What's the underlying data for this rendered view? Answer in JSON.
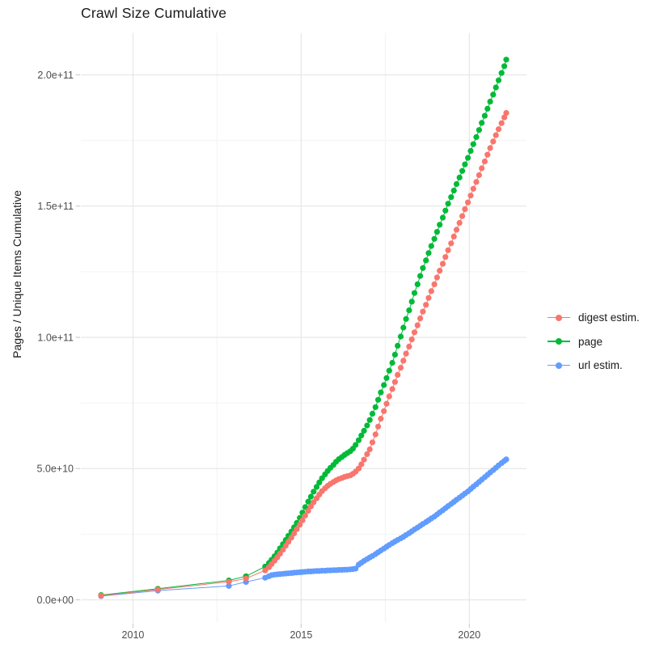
{
  "chart_data": {
    "type": "line",
    "title": "Crawl Size Cumulative",
    "xlabel": "",
    "ylabel": "Pages / Unique Items Cumulative",
    "value_unit": "pages, values stored in billions (1e9)",
    "grid": "major and minor, light gray on white",
    "x_domain": [
      2008.45,
      2021.7
    ],
    "y_domain": [
      -8.7,
      216
    ],
    "x_ticks": [
      {
        "v": 2010,
        "label": "2010"
      },
      {
        "v": 2015,
        "label": "2015"
      },
      {
        "v": 2020,
        "label": "2020"
      }
    ],
    "x_minor_breaks": [
      2012.5,
      2017.5
    ],
    "y_ticks": [
      {
        "v": 0,
        "label": "0.0e+00"
      },
      {
        "v": 50,
        "label": "5.0e+10"
      },
      {
        "v": 100,
        "label": "1.0e+11"
      },
      {
        "v": 150,
        "label": "1.5e+11"
      },
      {
        "v": 200,
        "label": "2.0e+11"
      }
    ],
    "y_minor_breaks": [
      25,
      75,
      125,
      175
    ],
    "legend": {
      "position": "right",
      "items": [
        {
          "label": "digest estim.",
          "color": "#F8766D",
          "series": "digest estim."
        },
        {
          "label": "page",
          "color": "#00BA38",
          "series": "page"
        },
        {
          "label": "url estim.",
          "color": "#619CFF",
          "series": "url estim."
        }
      ]
    },
    "style": {
      "background": "#ffffff",
      "major_grid_color": "#e7e7e7",
      "minor_grid_color": "#f3f3f3",
      "tick_color": "#cfcfcf",
      "tick_label_color": "#4d4d4d",
      "point_radius": 3.6,
      "line_width": 1
    },
    "series": [
      {
        "name": "url estim.",
        "color": "#619CFF",
        "points": [
          [
            2009.05,
            1.4
          ],
          [
            2010.74,
            3.5
          ],
          [
            2012.85,
            5.3
          ],
          [
            2013.36,
            6.8
          ],
          [
            2013.93,
            8.4
          ],
          [
            2014.04,
            9.0
          ],
          [
            2014.12,
            9.4
          ],
          [
            2014.21,
            9.6
          ],
          [
            2014.29,
            9.7
          ],
          [
            2014.37,
            9.8
          ],
          [
            2014.46,
            9.9
          ],
          [
            2014.54,
            10.0
          ],
          [
            2014.62,
            10.1
          ],
          [
            2014.71,
            10.2
          ],
          [
            2014.79,
            10.3
          ],
          [
            2014.87,
            10.4
          ],
          [
            2014.96,
            10.5
          ],
          [
            2015.04,
            10.6
          ],
          [
            2015.12,
            10.7
          ],
          [
            2015.21,
            10.8
          ],
          [
            2015.29,
            10.8
          ],
          [
            2015.37,
            10.9
          ],
          [
            2015.46,
            11.0
          ],
          [
            2015.54,
            11.0
          ],
          [
            2015.62,
            11.1
          ],
          [
            2015.71,
            11.1
          ],
          [
            2015.79,
            11.2
          ],
          [
            2015.87,
            11.2
          ],
          [
            2015.96,
            11.3
          ],
          [
            2016.04,
            11.3
          ],
          [
            2016.12,
            11.4
          ],
          [
            2016.21,
            11.4
          ],
          [
            2016.29,
            11.5
          ],
          [
            2016.37,
            11.5
          ],
          [
            2016.46,
            11.6
          ],
          [
            2016.54,
            11.7
          ],
          [
            2016.62,
            11.9
          ],
          [
            2016.71,
            13.4
          ],
          [
            2016.79,
            14.1
          ],
          [
            2016.87,
            14.8
          ],
          [
            2016.96,
            15.5
          ],
          [
            2017.04,
            16.1
          ],
          [
            2017.12,
            16.7
          ],
          [
            2017.21,
            17.4
          ],
          [
            2017.29,
            18.1
          ],
          [
            2017.37,
            18.8
          ],
          [
            2017.46,
            19.5
          ],
          [
            2017.54,
            20.2
          ],
          [
            2017.62,
            20.9
          ],
          [
            2017.71,
            21.6
          ],
          [
            2017.79,
            22.2
          ],
          [
            2017.87,
            22.8
          ],
          [
            2017.96,
            23.4
          ],
          [
            2018.04,
            24.0
          ],
          [
            2018.12,
            24.7
          ],
          [
            2018.21,
            25.4
          ],
          [
            2018.29,
            26.1
          ],
          [
            2018.37,
            26.8
          ],
          [
            2018.46,
            27.5
          ],
          [
            2018.54,
            28.2
          ],
          [
            2018.62,
            28.9
          ],
          [
            2018.71,
            29.6
          ],
          [
            2018.79,
            30.3
          ],
          [
            2018.87,
            31.0
          ],
          [
            2018.96,
            31.7
          ],
          [
            2019.04,
            32.5
          ],
          [
            2019.12,
            33.3
          ],
          [
            2019.21,
            34.1
          ],
          [
            2019.29,
            34.9
          ],
          [
            2019.37,
            35.7
          ],
          [
            2019.46,
            36.5
          ],
          [
            2019.54,
            37.3
          ],
          [
            2019.62,
            38.1
          ],
          [
            2019.71,
            38.9
          ],
          [
            2019.79,
            39.7
          ],
          [
            2019.87,
            40.5
          ],
          [
            2019.96,
            41.3
          ],
          [
            2020.04,
            42.2
          ],
          [
            2020.12,
            43.1
          ],
          [
            2020.21,
            44.0
          ],
          [
            2020.29,
            44.9
          ],
          [
            2020.37,
            45.8
          ],
          [
            2020.46,
            46.7
          ],
          [
            2020.54,
            47.6
          ],
          [
            2020.62,
            48.5
          ],
          [
            2020.71,
            49.4
          ],
          [
            2020.79,
            50.3
          ],
          [
            2020.87,
            51.2
          ],
          [
            2020.96,
            52.1
          ],
          [
            2021.04,
            52.9
          ],
          [
            2021.1,
            53.5
          ]
        ]
      },
      {
        "name": "page",
        "color": "#00BA38",
        "points": [
          [
            2009.05,
            1.8
          ],
          [
            2010.74,
            4.2
          ],
          [
            2012.85,
            7.4
          ],
          [
            2013.36,
            9.0
          ],
          [
            2013.93,
            12.7
          ],
          [
            2014.04,
            14.0
          ],
          [
            2014.12,
            15.2
          ],
          [
            2014.21,
            16.6
          ],
          [
            2014.29,
            18.0
          ],
          [
            2014.37,
            19.6
          ],
          [
            2014.46,
            21.2
          ],
          [
            2014.54,
            22.8
          ],
          [
            2014.62,
            24.4
          ],
          [
            2014.71,
            26.0
          ],
          [
            2014.79,
            27.6
          ],
          [
            2014.87,
            29.3
          ],
          [
            2014.96,
            31.2
          ],
          [
            2015.04,
            33.2
          ],
          [
            2015.12,
            35.3
          ],
          [
            2015.21,
            37.4
          ],
          [
            2015.29,
            39.3
          ],
          [
            2015.37,
            41.2
          ],
          [
            2015.46,
            43.0
          ],
          [
            2015.54,
            44.7
          ],
          [
            2015.62,
            46.3
          ],
          [
            2015.71,
            47.8
          ],
          [
            2015.79,
            49.1
          ],
          [
            2015.87,
            50.3
          ],
          [
            2015.96,
            51.4
          ],
          [
            2016.04,
            52.6
          ],
          [
            2016.12,
            53.6
          ],
          [
            2016.21,
            54.4
          ],
          [
            2016.29,
            55.2
          ],
          [
            2016.37,
            55.9
          ],
          [
            2016.46,
            56.6
          ],
          [
            2016.54,
            57.6
          ],
          [
            2016.62,
            59.0
          ],
          [
            2016.71,
            60.8
          ],
          [
            2016.79,
            62.6
          ],
          [
            2016.87,
            64.4
          ],
          [
            2016.96,
            66.4
          ],
          [
            2017.04,
            68.5
          ],
          [
            2017.12,
            70.9
          ],
          [
            2017.21,
            73.4
          ],
          [
            2017.29,
            76.2
          ],
          [
            2017.37,
            79.0
          ],
          [
            2017.46,
            81.8
          ],
          [
            2017.54,
            84.5
          ],
          [
            2017.62,
            87.3
          ],
          [
            2017.71,
            90.3
          ],
          [
            2017.79,
            93.4
          ],
          [
            2017.87,
            96.8
          ],
          [
            2017.96,
            100.3
          ],
          [
            2018.04,
            103.7
          ],
          [
            2018.12,
            107.0
          ],
          [
            2018.21,
            110.3
          ],
          [
            2018.29,
            113.6
          ],
          [
            2018.37,
            116.9
          ],
          [
            2018.46,
            120.2
          ],
          [
            2018.54,
            123.4
          ],
          [
            2018.62,
            126.4
          ],
          [
            2018.71,
            129.3
          ],
          [
            2018.79,
            132.1
          ],
          [
            2018.87,
            134.8
          ],
          [
            2018.96,
            137.5
          ],
          [
            2019.04,
            140.2
          ],
          [
            2019.12,
            142.9
          ],
          [
            2019.21,
            145.6
          ],
          [
            2019.29,
            148.3
          ],
          [
            2019.37,
            150.9
          ],
          [
            2019.46,
            153.4
          ],
          [
            2019.54,
            155.9
          ],
          [
            2019.62,
            158.4
          ],
          [
            2019.71,
            160.9
          ],
          [
            2019.79,
            163.4
          ],
          [
            2019.87,
            165.9
          ],
          [
            2019.96,
            168.4
          ],
          [
            2020.04,
            171.0
          ],
          [
            2020.12,
            173.6
          ],
          [
            2020.21,
            176.3
          ],
          [
            2020.29,
            179.0
          ],
          [
            2020.37,
            181.7
          ],
          [
            2020.46,
            184.4
          ],
          [
            2020.54,
            187.1
          ],
          [
            2020.62,
            189.8
          ],
          [
            2020.71,
            192.5
          ],
          [
            2020.79,
            195.2
          ],
          [
            2020.87,
            197.9
          ],
          [
            2020.96,
            200.7
          ],
          [
            2021.04,
            203.3
          ],
          [
            2021.1,
            205.8
          ]
        ]
      },
      {
        "name": "digest estim.",
        "color": "#F8766D",
        "points": [
          [
            2009.05,
            1.6
          ],
          [
            2010.74,
            3.9
          ],
          [
            2012.85,
            6.9
          ],
          [
            2013.36,
            8.1
          ],
          [
            2013.93,
            11.2
          ],
          [
            2014.04,
            12.4
          ],
          [
            2014.12,
            13.6
          ],
          [
            2014.21,
            14.9
          ],
          [
            2014.29,
            16.2
          ],
          [
            2014.37,
            17.6
          ],
          [
            2014.46,
            19.1
          ],
          [
            2014.54,
            20.6
          ],
          [
            2014.62,
            22.1
          ],
          [
            2014.71,
            23.7
          ],
          [
            2014.79,
            25.3
          ],
          [
            2014.87,
            26.9
          ],
          [
            2014.96,
            28.6
          ],
          [
            2015.04,
            30.3
          ],
          [
            2015.12,
            32.1
          ],
          [
            2015.21,
            33.9
          ],
          [
            2015.29,
            35.6
          ],
          [
            2015.37,
            37.2
          ],
          [
            2015.46,
            38.7
          ],
          [
            2015.54,
            40.1
          ],
          [
            2015.62,
            41.4
          ],
          [
            2015.71,
            42.5
          ],
          [
            2015.79,
            43.4
          ],
          [
            2015.87,
            44.2
          ],
          [
            2015.96,
            44.9
          ],
          [
            2016.04,
            45.5
          ],
          [
            2016.12,
            46.0
          ],
          [
            2016.21,
            46.4
          ],
          [
            2016.29,
            46.8
          ],
          [
            2016.37,
            47.1
          ],
          [
            2016.46,
            47.4
          ],
          [
            2016.54,
            48.0
          ],
          [
            2016.62,
            48.8
          ],
          [
            2016.71,
            50.0
          ],
          [
            2016.79,
            51.6
          ],
          [
            2016.87,
            53.4
          ],
          [
            2016.96,
            55.5
          ],
          [
            2017.04,
            57.3
          ],
          [
            2017.12,
            60.0
          ],
          [
            2017.21,
            63.0
          ],
          [
            2017.29,
            66.0
          ],
          [
            2017.37,
            69.0
          ],
          [
            2017.46,
            71.9
          ],
          [
            2017.54,
            74.7
          ],
          [
            2017.62,
            77.5
          ],
          [
            2017.71,
            80.3
          ],
          [
            2017.79,
            83.0
          ],
          [
            2017.87,
            85.7
          ],
          [
            2017.96,
            88.4
          ],
          [
            2018.04,
            91.1
          ],
          [
            2018.12,
            93.8
          ],
          [
            2018.21,
            96.5
          ],
          [
            2018.29,
            99.2
          ],
          [
            2018.37,
            101.9
          ],
          [
            2018.46,
            104.6
          ],
          [
            2018.54,
            107.2
          ],
          [
            2018.62,
            109.8
          ],
          [
            2018.71,
            112.4
          ],
          [
            2018.79,
            115.0
          ],
          [
            2018.87,
            117.6
          ],
          [
            2018.96,
            120.2
          ],
          [
            2019.04,
            122.8
          ],
          [
            2019.12,
            125.4
          ],
          [
            2019.21,
            128.0
          ],
          [
            2019.29,
            130.6
          ],
          [
            2019.37,
            133.2
          ],
          [
            2019.46,
            135.8
          ],
          [
            2019.54,
            138.4
          ],
          [
            2019.62,
            141.0
          ],
          [
            2019.71,
            143.6
          ],
          [
            2019.79,
            146.2
          ],
          [
            2019.87,
            148.8
          ],
          [
            2019.96,
            151.4
          ],
          [
            2020.04,
            154.0
          ],
          [
            2020.12,
            156.6
          ],
          [
            2020.21,
            159.2
          ],
          [
            2020.29,
            161.8
          ],
          [
            2020.37,
            164.4
          ],
          [
            2020.46,
            167.0
          ],
          [
            2020.54,
            169.6
          ],
          [
            2020.62,
            172.1
          ],
          [
            2020.71,
            174.6
          ],
          [
            2020.79,
            177.0
          ],
          [
            2020.87,
            179.3
          ],
          [
            2020.96,
            181.6
          ],
          [
            2021.04,
            183.8
          ],
          [
            2021.1,
            185.5
          ]
        ]
      }
    ]
  }
}
